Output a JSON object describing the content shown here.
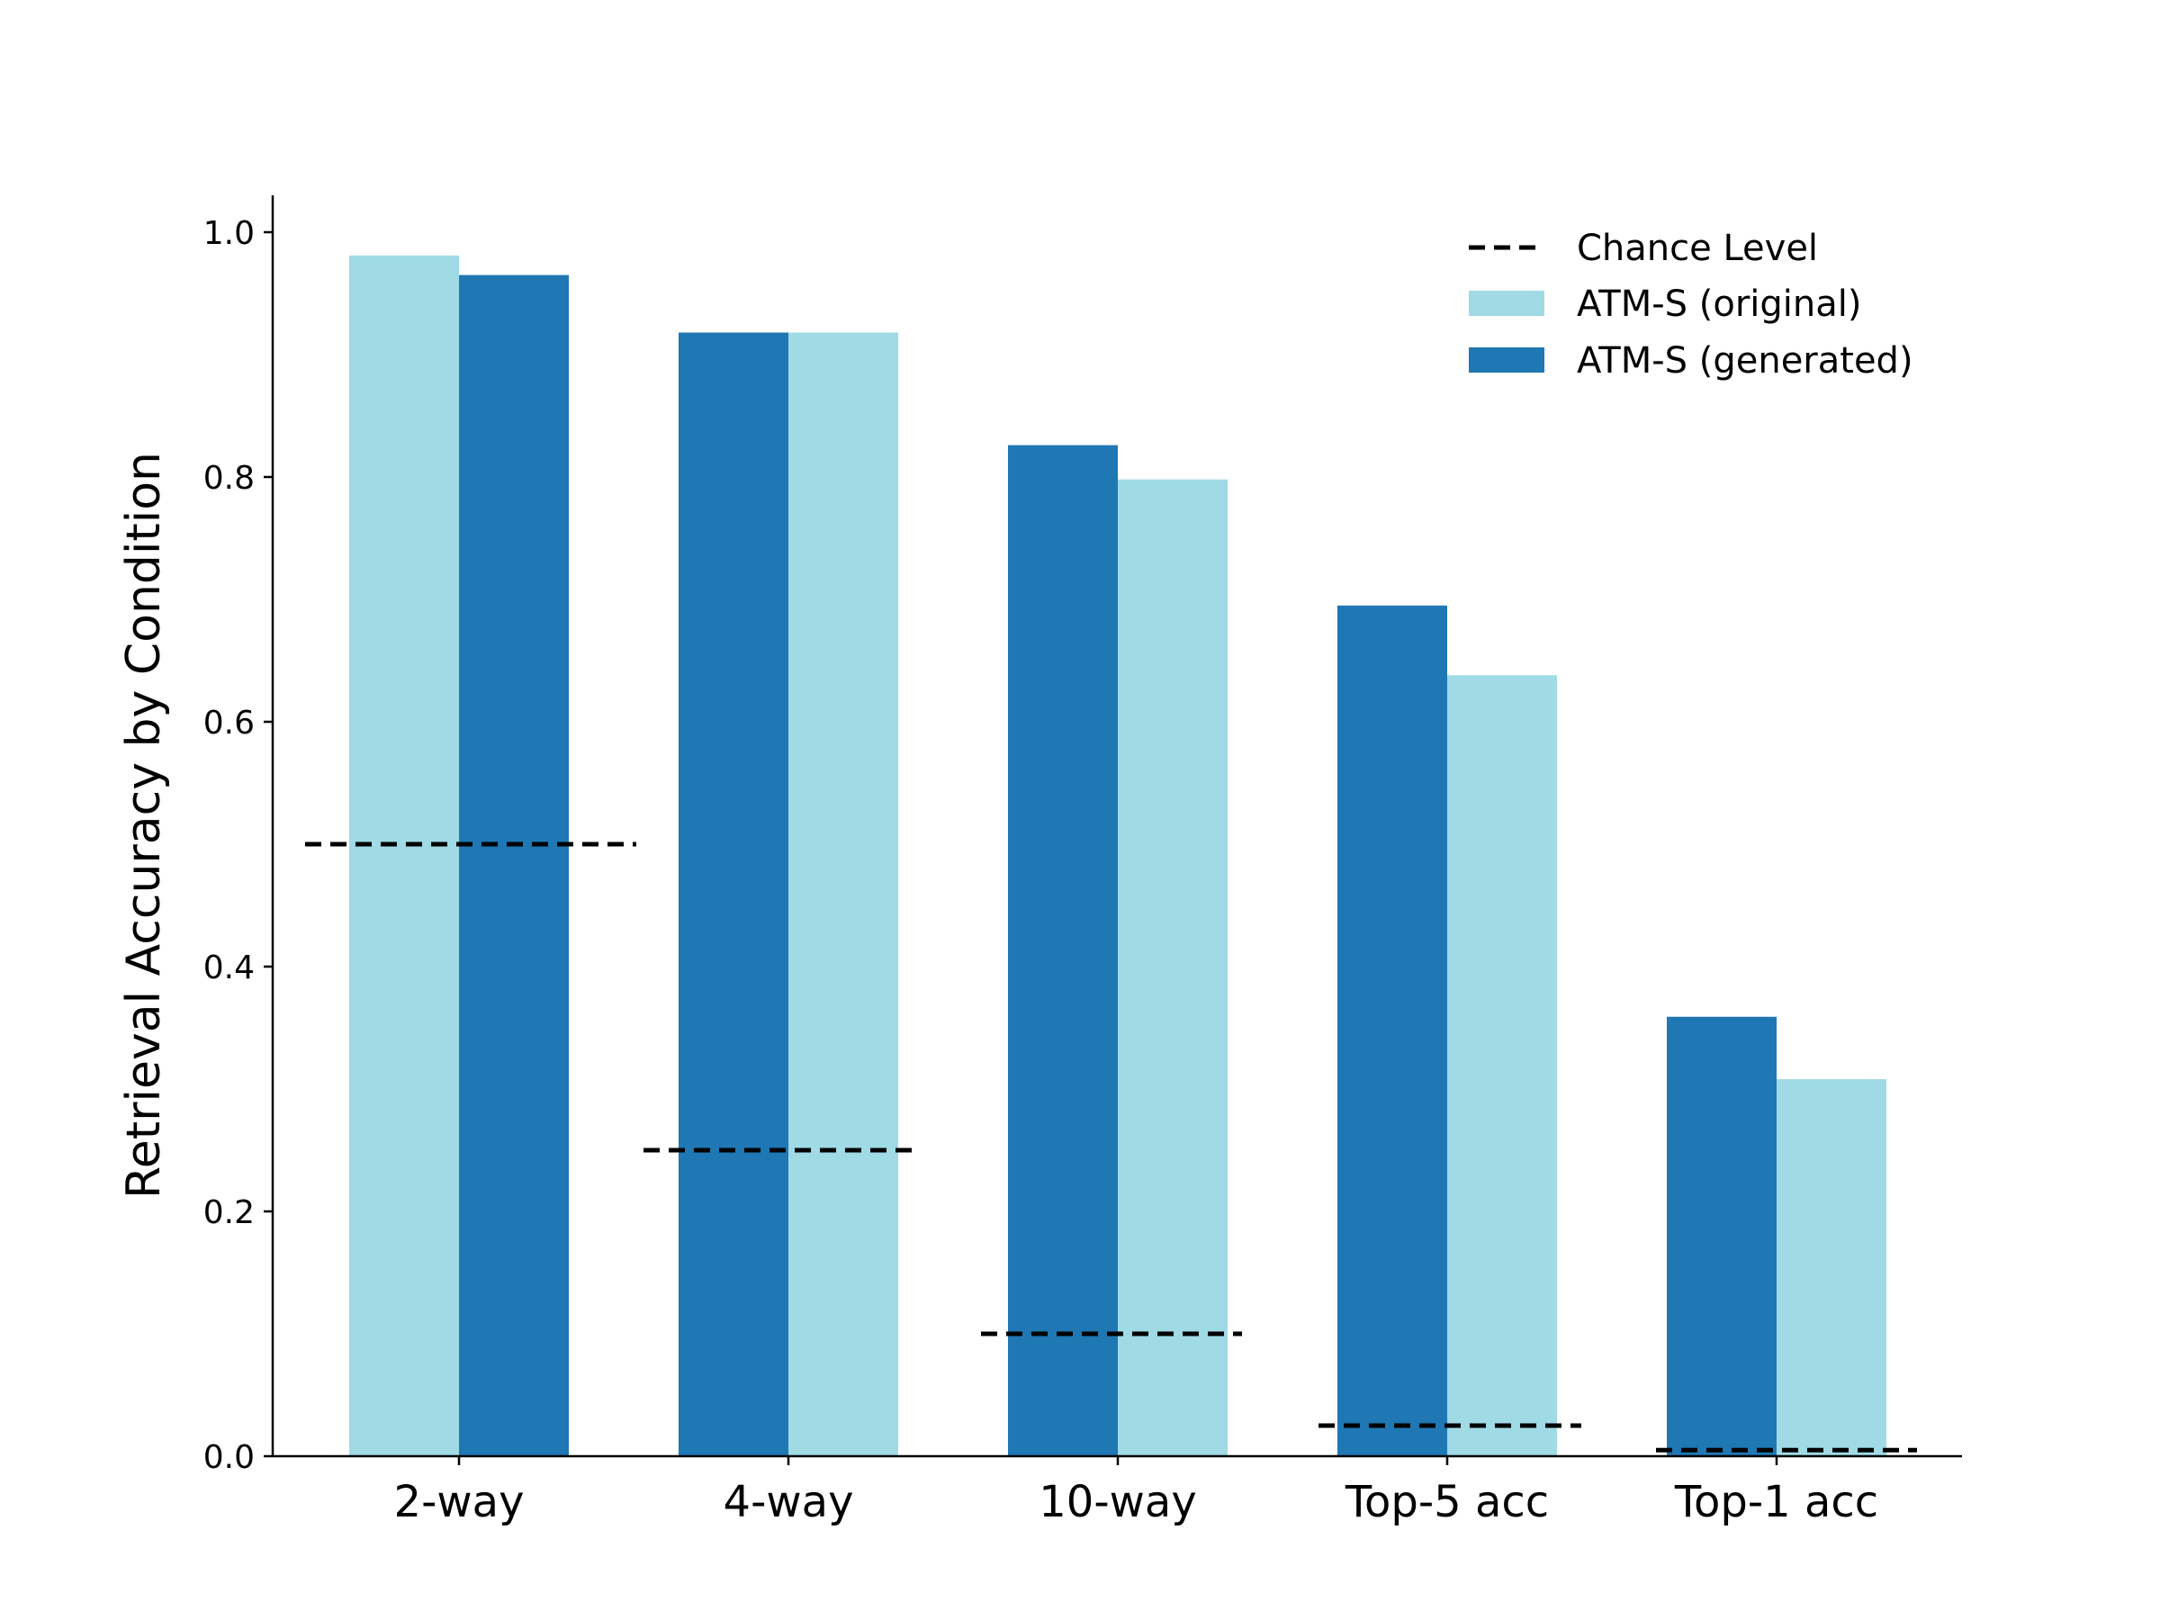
{
  "chart_data": {
    "type": "bar",
    "title": "",
    "xlabel": "",
    "ylabel": "Retrieval Accuracy by Condition",
    "ylim": [
      0,
      1.03
    ],
    "yticks": [
      "0.0",
      "0.2",
      "0.4",
      "0.6",
      "0.8",
      "1.0"
    ],
    "categories": [
      "2-way",
      "4-way",
      "10-way",
      "Top-5 acc",
      "Top-1 acc"
    ],
    "series": [
      {
        "name": "ATM-S (original)",
        "color": "#9fdae5",
        "values": [
          0.981,
          0.918,
          0.798,
          0.638,
          0.308
        ]
      },
      {
        "name": "ATM-S (generated)",
        "color": "#1f77b4",
        "values": [
          0.965,
          0.918,
          0.826,
          0.695,
          0.359
        ]
      }
    ],
    "bar_order": [
      [
        "ATM-S (original)",
        "ATM-S (generated)"
      ],
      [
        "ATM-S (generated)",
        "ATM-S (original)"
      ],
      [
        "ATM-S (generated)",
        "ATM-S (original)"
      ],
      [
        "ATM-S (generated)",
        "ATM-S (original)"
      ],
      [
        "ATM-S (generated)",
        "ATM-S (original)"
      ]
    ],
    "chance_level": {
      "name": "Chance Level",
      "color": "#000000",
      "style": "dashed",
      "values": [
        0.5,
        0.25,
        0.1,
        0.025,
        0.005
      ]
    },
    "legend": {
      "placement": "top-right",
      "entries": [
        "Chance Level",
        "ATM-S (original)",
        "ATM-S (generated)"
      ]
    },
    "grid": false
  }
}
